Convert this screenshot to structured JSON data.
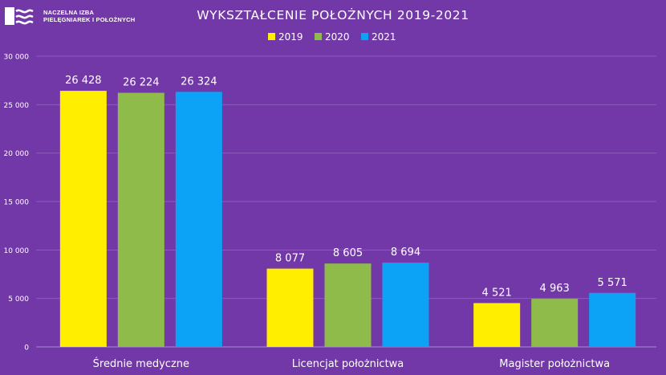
{
  "logo": {
    "line1": "NACZELNA IZBA",
    "line2": "PIELĘGNIAREK I POŁOŻNYCH"
  },
  "chart_data": {
    "type": "bar",
    "title": "WYKSZTAŁCENIE POŁOŻNYCH 2019-2021",
    "categories": [
      "Średnie medyczne",
      "Licencjat położnictwa",
      "Magister położnictwa"
    ],
    "series": [
      {
        "name": "2019",
        "color": "#ffee00",
        "values": [
          26428,
          8077,
          4521
        ],
        "labels": [
          "26 428",
          "8 077",
          "4 521"
        ]
      },
      {
        "name": "2020",
        "color": "#8fbb4a",
        "values": [
          26224,
          8605,
          4963
        ],
        "labels": [
          "26 224",
          "8 605",
          "4 963"
        ]
      },
      {
        "name": "2021",
        "color": "#0ca2f5",
        "values": [
          26324,
          8694,
          5571
        ],
        "labels": [
          "26 324",
          "8 694",
          "5 571"
        ]
      }
    ],
    "ylim": [
      0,
      30000
    ],
    "yticks": [
      0,
      5000,
      10000,
      15000,
      20000,
      25000,
      30000
    ],
    "ytick_labels": [
      "0",
      "5 000",
      "10 000",
      "15 000",
      "20 000",
      "25 000",
      "30 000"
    ],
    "grid": true,
    "legend_position": "top-center",
    "xlabel": "",
    "ylabel": ""
  }
}
